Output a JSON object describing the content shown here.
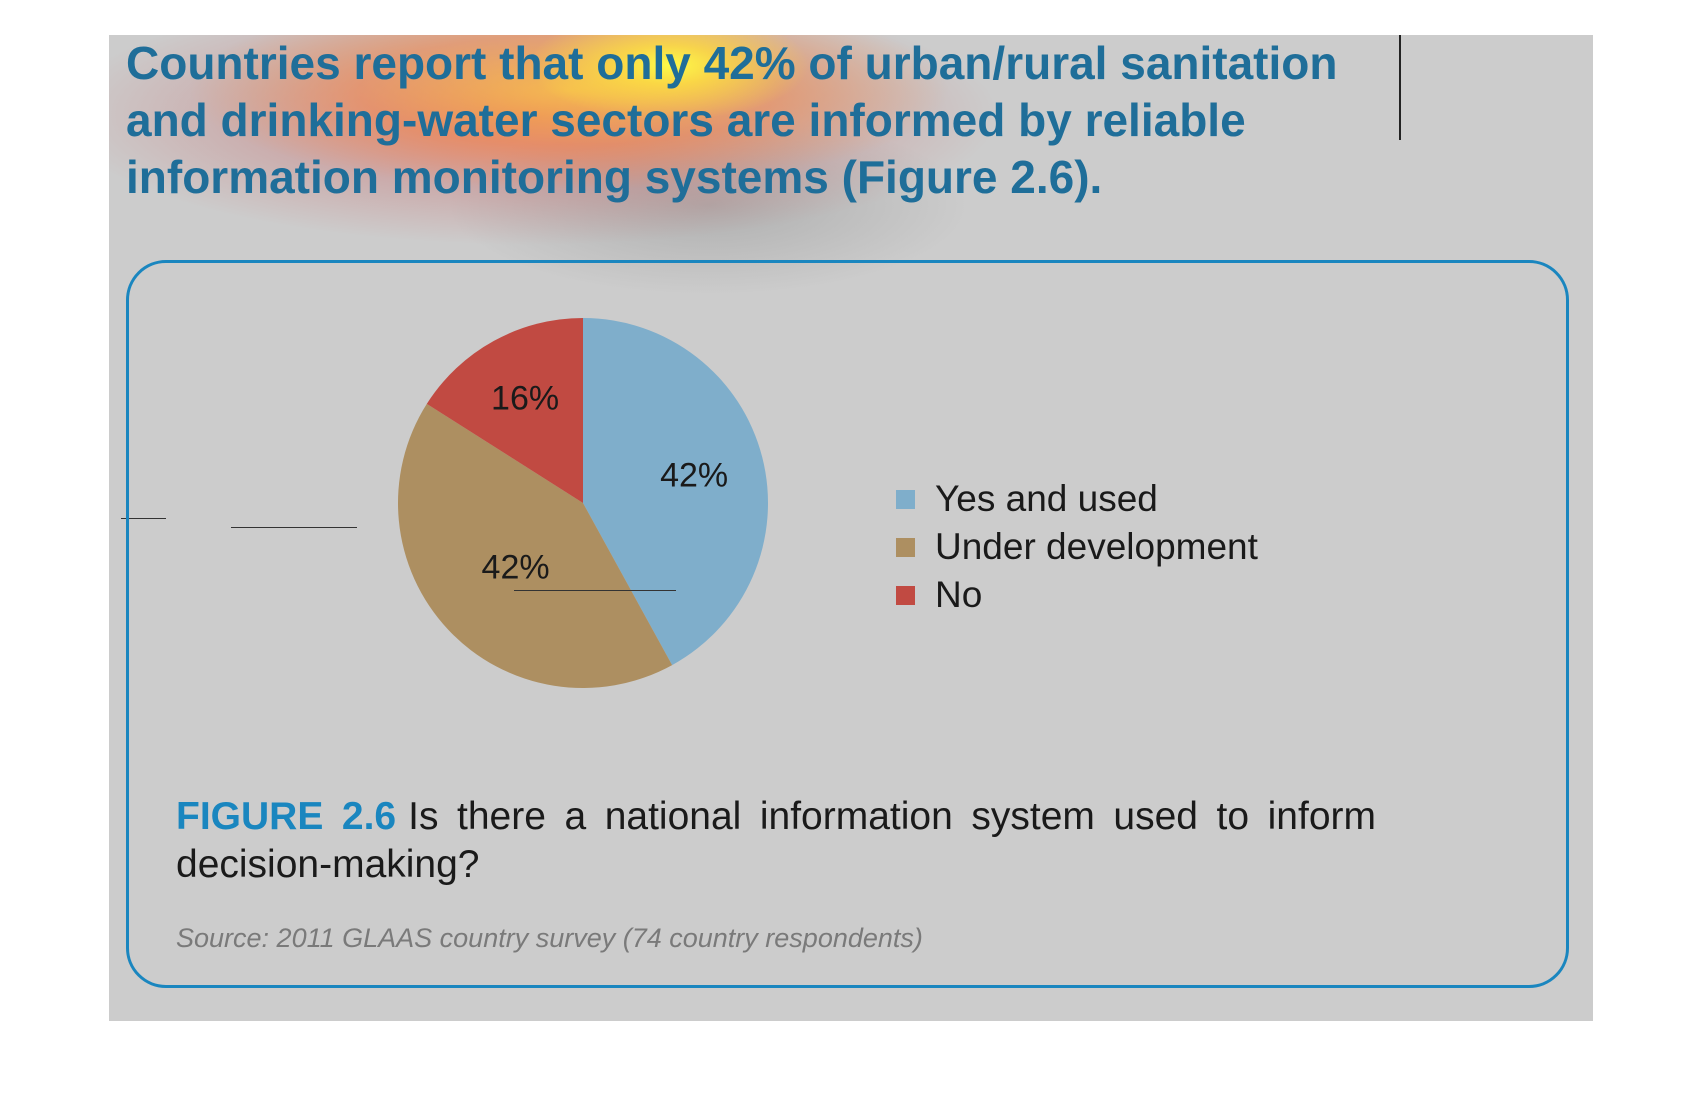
{
  "headline": "Countries report that only 42% of urban/rural sanitation and drinking-water sectors are informed by reliable information monitoring systems (Figure 2.6).",
  "colors": {
    "background": "#cccccc",
    "headline": "#1f6e99",
    "frame": "#1a86bf",
    "yes_and_used": "#7faecb",
    "under_development": "#ad8f61",
    "no": "#c14a42"
  },
  "chart_data": {
    "type": "pie",
    "slices": [
      {
        "label": "Yes and used",
        "value": 42,
        "display": "42%",
        "color": "#7faecb"
      },
      {
        "label": "Under development",
        "value": 42,
        "display": "42%",
        "color": "#ad8f61"
      },
      {
        "label": "No",
        "value": 16,
        "display": "16%",
        "color": "#c14a42"
      }
    ],
    "legend_placement": "right"
  },
  "figure": {
    "number": "FIGURE 2.6",
    "question": "Is there a national information system used to inform decision-making?",
    "source": "Source: 2011 GLAAS country survey (74 country respondents)"
  }
}
